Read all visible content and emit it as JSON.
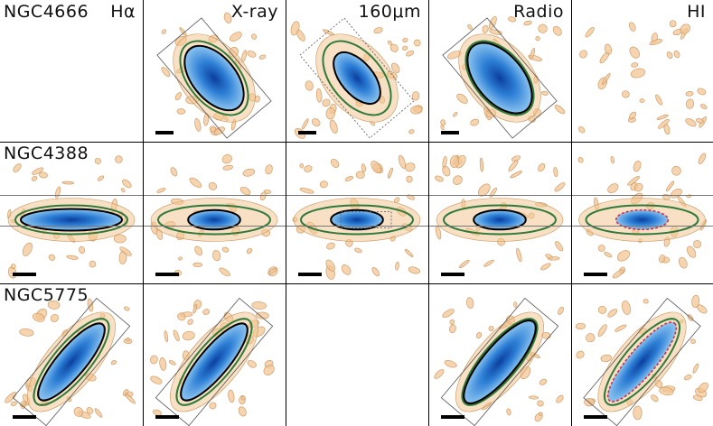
{
  "figure": {
    "bands": [
      {
        "id": "halpha",
        "label": "Hα"
      },
      {
        "id": "xray",
        "label": "X-ray"
      },
      {
        "id": "fir",
        "label": "160μm"
      },
      {
        "id": "radio",
        "label": "Radio"
      },
      {
        "id": "hi",
        "label": "HI"
      }
    ],
    "galaxies": [
      {
        "name": "NGC4666",
        "orientation": "tilted-nw",
        "present": [
          false,
          true,
          true,
          true,
          false
        ]
      },
      {
        "name": "NGC4388",
        "orientation": "horizontal",
        "present": [
          true,
          true,
          true,
          true,
          true
        ]
      },
      {
        "name": "NGC5775",
        "orientation": "tilted-ne",
        "present": [
          true,
          true,
          false,
          true,
          true
        ]
      }
    ],
    "colors": {
      "emission_core": "#0a3f9e",
      "emission_mid": "#2d7fd6",
      "emission_outer": "#9fd2f5",
      "contour_outer": "#f2c694",
      "contour_mid": "#2f7a3a",
      "contour_inner": "#000000",
      "hi_contour": "#d0304a",
      "grid": "#000000"
    }
  }
}
